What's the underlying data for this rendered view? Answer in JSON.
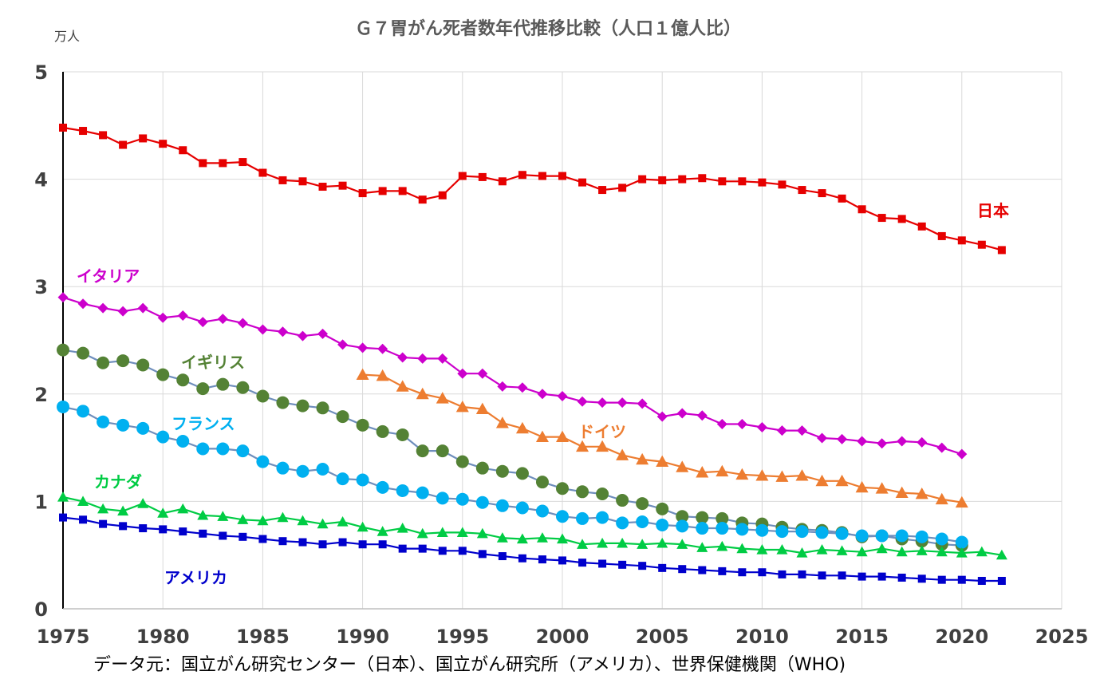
{
  "chart_data": {
    "type": "line",
    "title": "Ｇ７胃がん死者数年代推移比較（人口１億人比）",
    "ylabel": "万人",
    "source": "データ元：国立がん研究センター（日本）、国立がん研究所（アメリカ）、世界保健機関（WHO)",
    "xlim": [
      1975,
      2025
    ],
    "ylim": [
      0,
      5
    ],
    "x_ticks": [
      "1975",
      "1980",
      "1985",
      "1990",
      "1995",
      "2000",
      "2005",
      "2010",
      "2015",
      "2020",
      "2025"
    ],
    "y_ticks": [
      "0",
      "1",
      "2",
      "3",
      "4",
      "5"
    ],
    "grid": true,
    "series": [
      {
        "name": "日本",
        "color": "#e60000",
        "marker": "square",
        "x": [
          1975,
          1976,
          1977,
          1978,
          1979,
          1980,
          1981,
          1982,
          1983,
          1984,
          1985,
          1986,
          1987,
          1988,
          1989,
          1990,
          1991,
          1992,
          1993,
          1994,
          1995,
          1996,
          1997,
          1998,
          1999,
          2000,
          2001,
          2002,
          2003,
          2004,
          2005,
          2006,
          2007,
          2008,
          2009,
          2010,
          2011,
          2012,
          2013,
          2014,
          2015,
          2016,
          2017,
          2018,
          2019,
          2020,
          2021,
          2022
        ],
        "values": [
          4.48,
          4.45,
          4.41,
          4.32,
          4.38,
          4.33,
          4.27,
          4.15,
          4.15,
          4.16,
          4.06,
          3.99,
          3.98,
          3.93,
          3.94,
          3.87,
          3.89,
          3.89,
          3.81,
          3.85,
          4.03,
          4.02,
          3.98,
          4.04,
          4.03,
          4.03,
          3.97,
          3.9,
          3.92,
          4.0,
          3.99,
          4.0,
          4.01,
          3.98,
          3.98,
          3.97,
          3.95,
          3.9,
          3.87,
          3.82,
          3.72,
          3.64,
          3.63,
          3.56,
          3.47,
          3.43,
          3.39,
          3.34
        ]
      },
      {
        "name": "イタリア",
        "color": "#cc00cc",
        "marker": "diamond",
        "x": [
          1975,
          1976,
          1977,
          1978,
          1979,
          1980,
          1981,
          1982,
          1983,
          1984,
          1985,
          1986,
          1987,
          1988,
          1989,
          1990,
          1991,
          1992,
          1993,
          1994,
          1995,
          1996,
          1997,
          1998,
          1999,
          2000,
          2001,
          2002,
          2003,
          2004,
          2005,
          2006,
          2007,
          2008,
          2009,
          2010,
          2011,
          2012,
          2013,
          2014,
          2015,
          2016,
          2017,
          2018,
          2019,
          2020
        ],
        "values": [
          2.9,
          2.84,
          2.8,
          2.77,
          2.8,
          2.71,
          2.73,
          2.67,
          2.7,
          2.66,
          2.6,
          2.58,
          2.54,
          2.56,
          2.46,
          2.43,
          2.42,
          2.34,
          2.33,
          2.33,
          2.19,
          2.19,
          2.07,
          2.06,
          2.0,
          1.98,
          1.93,
          1.92,
          1.92,
          1.91,
          1.79,
          1.82,
          1.8,
          1.72,
          1.72,
          1.69,
          1.66,
          1.66,
          1.59,
          1.58,
          1.56,
          1.54,
          1.56,
          1.55,
          1.5,
          1.44
        ]
      },
      {
        "name": "イギリス",
        "color": "#548235",
        "marker": "circle",
        "x": [
          1975,
          1976,
          1977,
          1978,
          1979,
          1980,
          1981,
          1982,
          1983,
          1984,
          1985,
          1986,
          1987,
          1988,
          1989,
          1990,
          1991,
          1992,
          1993,
          1994,
          1995,
          1996,
          1997,
          1998,
          1999,
          2000,
          2001,
          2002,
          2003,
          2004,
          2005,
          2006,
          2007,
          2008,
          2009,
          2010,
          2011,
          2012,
          2013,
          2014,
          2015,
          2016,
          2017,
          2018,
          2019,
          2020
        ],
        "values": [
          2.41,
          2.38,
          2.29,
          2.31,
          2.27,
          2.18,
          2.13,
          2.05,
          2.09,
          2.06,
          1.98,
          1.92,
          1.89,
          1.87,
          1.79,
          1.71,
          1.65,
          1.62,
          1.47,
          1.47,
          1.37,
          1.31,
          1.28,
          1.26,
          1.18,
          1.12,
          1.09,
          1.07,
          1.01,
          0.98,
          0.93,
          0.86,
          0.85,
          0.84,
          0.8,
          0.79,
          0.76,
          0.74,
          0.73,
          0.71,
          0.67,
          0.68,
          0.65,
          0.63,
          0.6,
          0.59
        ]
      },
      {
        "name": "ドイツ",
        "color": "#ed7d31",
        "marker": "triangle",
        "x": [
          1990,
          1991,
          1992,
          1993,
          1994,
          1995,
          1996,
          1997,
          1998,
          1999,
          2000,
          2001,
          2002,
          2003,
          2004,
          2005,
          2006,
          2007,
          2008,
          2009,
          2010,
          2011,
          2012,
          2013,
          2014,
          2015,
          2016,
          2017,
          2018,
          2019,
          2020
        ],
        "values": [
          2.18,
          2.17,
          2.07,
          2.0,
          1.96,
          1.88,
          1.86,
          1.73,
          1.68,
          1.6,
          1.6,
          1.51,
          1.51,
          1.43,
          1.39,
          1.37,
          1.32,
          1.27,
          1.28,
          1.25,
          1.24,
          1.23,
          1.24,
          1.19,
          1.19,
          1.13,
          1.12,
          1.08,
          1.07,
          1.02,
          0.99
        ]
      },
      {
        "name": "フランス",
        "color": "#00b0f0",
        "marker": "circle",
        "x": [
          1975,
          1976,
          1977,
          1978,
          1979,
          1980,
          1981,
          1982,
          1983,
          1984,
          1985,
          1986,
          1987,
          1988,
          1989,
          1990,
          1991,
          1992,
          1993,
          1994,
          1995,
          1996,
          1997,
          1998,
          1999,
          2000,
          2001,
          2002,
          2003,
          2004,
          2005,
          2006,
          2007,
          2008,
          2009,
          2010,
          2011,
          2012,
          2013,
          2014,
          2015,
          2016,
          2017,
          2018,
          2019,
          2020
        ],
        "values": [
          1.88,
          1.84,
          1.74,
          1.71,
          1.68,
          1.6,
          1.56,
          1.49,
          1.49,
          1.47,
          1.37,
          1.31,
          1.28,
          1.3,
          1.21,
          1.2,
          1.13,
          1.1,
          1.08,
          1.03,
          1.02,
          0.99,
          0.96,
          0.94,
          0.91,
          0.86,
          0.84,
          0.85,
          0.8,
          0.81,
          0.78,
          0.77,
          0.75,
          0.75,
          0.74,
          0.73,
          0.72,
          0.72,
          0.71,
          0.7,
          0.68,
          0.68,
          0.68,
          0.67,
          0.65,
          0.62
        ]
      },
      {
        "name": "カナダ",
        "color": "#00cc44",
        "marker": "triangle",
        "x": [
          1975,
          1976,
          1977,
          1978,
          1979,
          1980,
          1981,
          1982,
          1983,
          1984,
          1985,
          1986,
          1987,
          1988,
          1989,
          1990,
          1991,
          1992,
          1993,
          1994,
          1995,
          1996,
          1997,
          1998,
          1999,
          2000,
          2001,
          2002,
          2003,
          2004,
          2005,
          2006,
          2007,
          2008,
          2009,
          2010,
          2011,
          2012,
          2013,
          2014,
          2015,
          2016,
          2017,
          2018,
          2019,
          2020,
          2021,
          2022
        ],
        "values": [
          1.04,
          1.0,
          0.93,
          0.91,
          0.98,
          0.89,
          0.93,
          0.87,
          0.86,
          0.83,
          0.82,
          0.85,
          0.82,
          0.79,
          0.81,
          0.76,
          0.72,
          0.75,
          0.7,
          0.71,
          0.71,
          0.7,
          0.66,
          0.65,
          0.66,
          0.65,
          0.6,
          0.61,
          0.61,
          0.6,
          0.61,
          0.6,
          0.57,
          0.58,
          0.56,
          0.55,
          0.55,
          0.52,
          0.55,
          0.54,
          0.53,
          0.56,
          0.53,
          0.54,
          0.53,
          0.52,
          0.53,
          0.5
        ]
      },
      {
        "name": "アメリカ",
        "color": "#0000cc",
        "marker": "square",
        "x": [
          1975,
          1976,
          1977,
          1978,
          1979,
          1980,
          1981,
          1982,
          1983,
          1984,
          1985,
          1986,
          1987,
          1988,
          1989,
          1990,
          1991,
          1992,
          1993,
          1994,
          1995,
          1996,
          1997,
          1998,
          1999,
          2000,
          2001,
          2002,
          2003,
          2004,
          2005,
          2006,
          2007,
          2008,
          2009,
          2010,
          2011,
          2012,
          2013,
          2014,
          2015,
          2016,
          2017,
          2018,
          2019,
          2020,
          2021,
          2022
        ],
        "values": [
          0.85,
          0.83,
          0.79,
          0.77,
          0.75,
          0.74,
          0.72,
          0.7,
          0.68,
          0.67,
          0.65,
          0.63,
          0.62,
          0.6,
          0.62,
          0.6,
          0.6,
          0.56,
          0.56,
          0.54,
          0.54,
          0.51,
          0.49,
          0.47,
          0.46,
          0.45,
          0.43,
          0.42,
          0.41,
          0.4,
          0.38,
          0.37,
          0.36,
          0.35,
          0.34,
          0.34,
          0.32,
          0.32,
          0.31,
          0.31,
          0.3,
          0.3,
          0.29,
          0.28,
          0.27,
          0.27,
          0.26,
          0.26
        ]
      }
    ]
  }
}
